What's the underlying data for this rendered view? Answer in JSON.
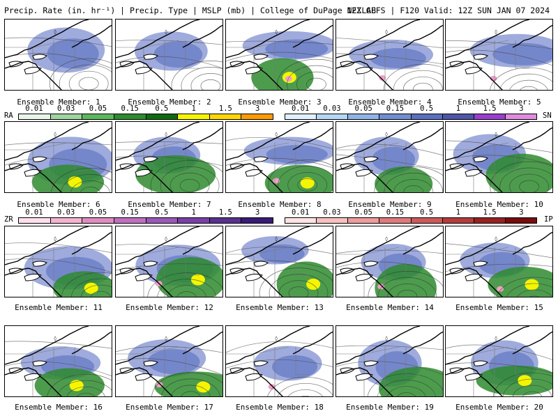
{
  "header": {
    "left": "Precip. Rate (in. hr⁻¹) | Precip. Type | MSLP (mb) | College of DuPage NEXLAB",
    "right": "12Z GEFS | F120 Valid: 12Z SUN JAN 07 2024"
  },
  "members": [
    {
      "label": "Ensemble Member: 1"
    },
    {
      "label": "Ensemble Member: 2"
    },
    {
      "label": "Ensemble Member: 3"
    },
    {
      "label": "Ensemble Member: 4"
    },
    {
      "label": "Ensemble Member: 5"
    },
    {
      "label": "Ensemble Member: 6"
    },
    {
      "label": "Ensemble Member: 7"
    },
    {
      "label": "Ensemble Member: 8"
    },
    {
      "label": "Ensemble Member: 9"
    },
    {
      "label": "Ensemble Member: 10"
    },
    {
      "label": "Ensemble Member: 11"
    },
    {
      "label": "Ensemble Member: 12"
    },
    {
      "label": "Ensemble Member: 13"
    },
    {
      "label": "Ensemble Member: 14"
    },
    {
      "label": "Ensemble Member: 15"
    },
    {
      "label": "Ensemble Member: 16"
    },
    {
      "label": "Ensemble Member: 17"
    },
    {
      "label": "Ensemble Member: 18"
    },
    {
      "label": "Ensemble Member: 19"
    },
    {
      "label": "Ensemble Member: 20"
    }
  ],
  "colorbars": {
    "ra": {
      "type_label": "RA",
      "ticks": [
        "0.01",
        "0.03",
        "0.05",
        "0.15",
        "0.5",
        "1",
        "1.5",
        "3"
      ],
      "colors": [
        "#e8f5e8",
        "#9ed49e",
        "#5cb85c",
        "#2e8b2e",
        "#0f6b0f",
        "#f5f500",
        "#ffd700",
        "#ff9a00"
      ]
    },
    "sn": {
      "type_label": "SN",
      "ticks": [
        "0.01",
        "0.03",
        "0.05",
        "0.15",
        "0.5",
        "1",
        "1.5",
        "3"
      ],
      "colors": [
        "#e0f0ff",
        "#b4d8f4",
        "#8fb4e6",
        "#6f8fd0",
        "#5a6fbf",
        "#4f55a8",
        "#9a3ed0",
        "#e08ae0"
      ]
    },
    "zr": {
      "type_label": "ZR",
      "ticks": [
        "0.01",
        "0.03",
        "0.05",
        "0.15",
        "0.5",
        "1",
        "1.5",
        "3"
      ],
      "colors": [
        "#ffe0ec",
        "#f5b4d0",
        "#e08cc0",
        "#c070c0",
        "#9a58b8",
        "#7840a8",
        "#583090",
        "#3a1a78"
      ]
    },
    "ip": {
      "type_label": "IP",
      "ticks": [
        "0.01",
        "0.03",
        "0.05",
        "0.15",
        "0.5",
        "1",
        "1.5",
        "3"
      ],
      "colors": [
        "#ffe4e4",
        "#f8c0c0",
        "#ee9c9c",
        "#e07a7a",
        "#cc5a5a",
        "#b43c3c",
        "#962222",
        "#780c0c"
      ]
    }
  },
  "colors": {
    "snow": "#7f8fd0",
    "rain": "#2e8b2e",
    "freezing": "#f0a0c8",
    "heavy_rain": "#f5f500"
  }
}
